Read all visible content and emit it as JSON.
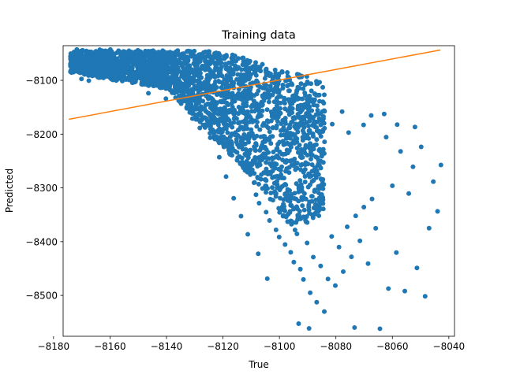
{
  "chart_data": {
    "type": "scatter",
    "title": "Training data",
    "xlabel": "True",
    "ylabel": "Predicted",
    "xlim": [
      -8176.6,
      -8038.0
    ],
    "ylim": [
      -8576.0,
      -8035.5
    ],
    "xticks": [
      -8180,
      -8160,
      -8140,
      -8120,
      -8100,
      -8080,
      -8060,
      -8040
    ],
    "yticks": [
      -8100,
      -8200,
      -8300,
      -8400,
      -8500
    ],
    "xtick_labels": [
      "−8180",
      "−8160",
      "−8140",
      "−8120",
      "−8100",
      "−8080",
      "−8060",
      "−8040"
    ],
    "ytick_labels": [
      "−8100",
      "−8200",
      "−8300",
      "−8400",
      "−8500"
    ],
    "grid": false,
    "series": [
      {
        "kind": "scatter",
        "color": "#1f77b4",
        "point_density": [
          [
            -8173,
            -8062,
            0
          ],
          [
            -8165,
            -8068,
            0
          ],
          [
            -8155,
            -8072,
            0
          ],
          [
            -8145,
            -8070,
            0
          ],
          [
            -8135,
            -8072,
            0
          ],
          [
            -8125,
            -8068,
            0
          ],
          [
            -8118,
            -8060,
            0
          ],
          [
            -8110,
            -8075,
            0
          ],
          [
            -8102,
            -8085,
            0
          ]
        ],
        "points": [
          [
            -8173.9,
            -8050.3
          ],
          [
            -8172.8,
            -8063.1
          ],
          [
            -8171.2,
            -8072.8
          ],
          [
            -8169.5,
            -8055.2
          ],
          [
            -8168.0,
            -8079.6
          ],
          [
            -8166.7,
            -8066.2
          ],
          [
            -8165.1,
            -8058.4
          ],
          [
            -8163.4,
            -8082.9
          ],
          [
            -8161.9,
            -8071.0
          ],
          [
            -8160.2,
            -8060.7
          ],
          [
            -8158.8,
            -8087.2
          ],
          [
            -8157.1,
            -8069.5
          ],
          [
            -8155.6,
            -8059.1
          ],
          [
            -8154.0,
            -8077.8
          ],
          [
            -8152.5,
            -8090.6
          ],
          [
            -8150.9,
            -8064.3
          ],
          [
            -8149.2,
            -8057.5
          ],
          [
            -8147.7,
            -8081.1
          ],
          [
            -8146.1,
            -8070.4
          ],
          [
            -8144.5,
            -8058.9
          ],
          [
            -8142.9,
            -8088.3
          ],
          [
            -8141.4,
            -8073.0
          ],
          [
            -8139.8,
            -8062.7
          ],
          [
            -8138.2,
            -8084.6
          ],
          [
            -8136.6,
            -8101.2
          ],
          [
            -8135.1,
            -8066.8
          ],
          [
            -8133.5,
            -8055.6
          ],
          [
            -8131.9,
            -8079.3
          ],
          [
            -8130.3,
            -8093.7
          ],
          [
            -8128.7,
            -8061.4
          ],
          [
            -8127.2,
            -8052.0
          ],
          [
            -8125.6,
            -8075.2
          ],
          [
            -8124.0,
            -8088.9
          ],
          [
            -8122.4,
            -8048.8
          ],
          [
            -8120.9,
            -8066.5
          ],
          [
            -8119.3,
            -8058.1
          ],
          [
            -8117.7,
            -8080.0
          ],
          [
            -8116.1,
            -8062.3
          ],
          [
            -8114.5,
            -8075.9
          ],
          [
            -8113.0,
            -8070.8
          ],
          [
            -8111.4,
            -8085.4
          ],
          [
            -8109.8,
            -8078.2
          ],
          [
            -8108.2,
            -8090.7
          ],
          [
            -8106.7,
            -8082.5
          ],
          [
            -8105.1,
            -8096.3
          ],
          [
            -8103.5,
            -8091.1
          ],
          [
            -8101.9,
            -8104.8
          ],
          [
            -8100.4,
            -8098.2
          ],
          [
            -8098.8,
            -8108.6
          ],
          [
            -8097.2,
            -8110.4
          ],
          [
            -8096.7,
            -8119.3
          ],
          [
            -8170.1,
            -8097.3
          ],
          [
            -8167.5,
            -8100.6
          ],
          [
            -8160.3,
            -8076.3
          ],
          [
            -8146.4,
            -8123.9
          ],
          [
            -8140.2,
            -8134.1
          ],
          [
            -8133.9,
            -8115.2
          ],
          [
            -8131.1,
            -8150.3
          ],
          [
            -8127.9,
            -8162.7
          ],
          [
            -8125.8,
            -8171.4
          ],
          [
            -8123.1,
            -8178.9
          ],
          [
            -8121.6,
            -8155.0
          ],
          [
            -8119.8,
            -8190.4
          ],
          [
            -8118.5,
            -8210.2
          ],
          [
            -8117.1,
            -8225.7
          ],
          [
            -8115.9,
            -8201.3
          ],
          [
            -8114.2,
            -8241.6
          ],
          [
            -8112.8,
            -8262.5
          ],
          [
            -8111.6,
            -8230.8
          ],
          [
            -8110.3,
            -8275.4
          ],
          [
            -8109.0,
            -8290.3
          ],
          [
            -8108.3,
            -8312.7
          ],
          [
            -8107.2,
            -8328.4
          ],
          [
            -8106.0,
            -8301.2
          ],
          [
            -8104.7,
            -8345.1
          ],
          [
            -8103.5,
            -8360.6
          ],
          [
            -8102.3,
            -8322.7
          ],
          [
            -8101.2,
            -8378.0
          ],
          [
            -8100.1,
            -8391.5
          ],
          [
            -8099.0,
            -8340.2
          ],
          [
            -8098.0,
            -8405.3
          ],
          [
            -8097.1,
            -8362.9
          ],
          [
            -8096.0,
            -8419.8
          ],
          [
            -8094.9,
            -8438.1
          ],
          [
            -8093.8,
            -8385.6
          ],
          [
            -8092.6,
            -8451.2
          ],
          [
            -8091.5,
            -8470.3
          ],
          [
            -8090.2,
            -8402.4
          ],
          [
            -8089.1,
            -8495.0
          ],
          [
            -8088.0,
            -8428.7
          ],
          [
            -8086.8,
            -8512.6
          ],
          [
            -8085.4,
            -8445.3
          ],
          [
            -8084.1,
            -8530.1
          ],
          [
            -8082.8,
            -8469.5
          ],
          [
            -8081.5,
            -8390.3
          ],
          [
            -8080.2,
            -8481.7
          ],
          [
            -8078.9,
            -8410.2
          ],
          [
            -8077.4,
            -8455.8
          ],
          [
            -8076.0,
            -8372.4
          ],
          [
            -8074.5,
            -8428.3
          ],
          [
            -8073.0,
            -8352.1
          ],
          [
            -8071.5,
            -8398.5
          ],
          [
            -8070.1,
            -8335.7
          ],
          [
            -8068.6,
            -8440.9
          ],
          [
            -8067.2,
            -8320.6
          ],
          [
            -8065.9,
            -8375.2
          ],
          [
            -8064.4,
            -8562.0
          ],
          [
            -8062.9,
            -8162.5
          ],
          [
            -8061.4,
            -8487.3
          ],
          [
            -8060.0,
            -8296.1
          ],
          [
            -8058.6,
            -8420.4
          ],
          [
            -8057.1,
            -8232.2
          ],
          [
            -8055.6,
            -8492.0
          ],
          [
            -8054.2,
            -8310.5
          ],
          [
            -8052.7,
            -8260.8
          ],
          [
            -8051.3,
            -8448.9
          ],
          [
            -8049.8,
            -8223.7
          ],
          [
            -8048.4,
            -8501.6
          ],
          [
            -8047.0,
            -8374.9
          ],
          [
            -8045.5,
            -8288.3
          ],
          [
            -8044.0,
            -8343.7
          ],
          [
            -8042.8,
            -8257.4
          ],
          [
            -8067.5,
            -8165.3
          ],
          [
            -8073.4,
            -8559.8
          ],
          [
            -8093.2,
            -8552.6
          ],
          [
            -8089.5,
            -8561.3
          ],
          [
            -8081.3,
            -8181.4
          ],
          [
            -8077.8,
            -8158.2
          ],
          [
            -8062.2,
            -8205.6
          ],
          [
            -8058.3,
            -8182.3
          ],
          [
            -8052.0,
            -8186.7
          ],
          [
            -8084.3,
            -8142.5
          ],
          [
            -8087.5,
            -8135.8
          ],
          [
            -8090.8,
            -8128.2
          ],
          [
            -8075.5,
            -8197.2
          ],
          [
            -8070.2,
            -8182.9
          ],
          [
            -8104.3,
            -8468.9
          ],
          [
            -8107.5,
            -8422.5
          ],
          [
            -8111.2,
            -8386.4
          ],
          [
            -8113.6,
            -8352.6
          ],
          [
            -8116.2,
            -8319.3
          ],
          [
            -8118.9,
            -8279.1
          ],
          [
            -8121.3,
            -8243.0
          ],
          [
            -8124.5,
            -8206.7
          ],
          [
            -8128.2,
            -8188.6
          ],
          [
            -8130.8,
            -8171.1
          ]
        ]
      },
      {
        "kind": "line",
        "color": "#ff7f0e",
        "x": [
          -8174.6,
          -8043.0
        ],
        "y": [
          -8172.4,
          -8043.5
        ]
      }
    ]
  }
}
